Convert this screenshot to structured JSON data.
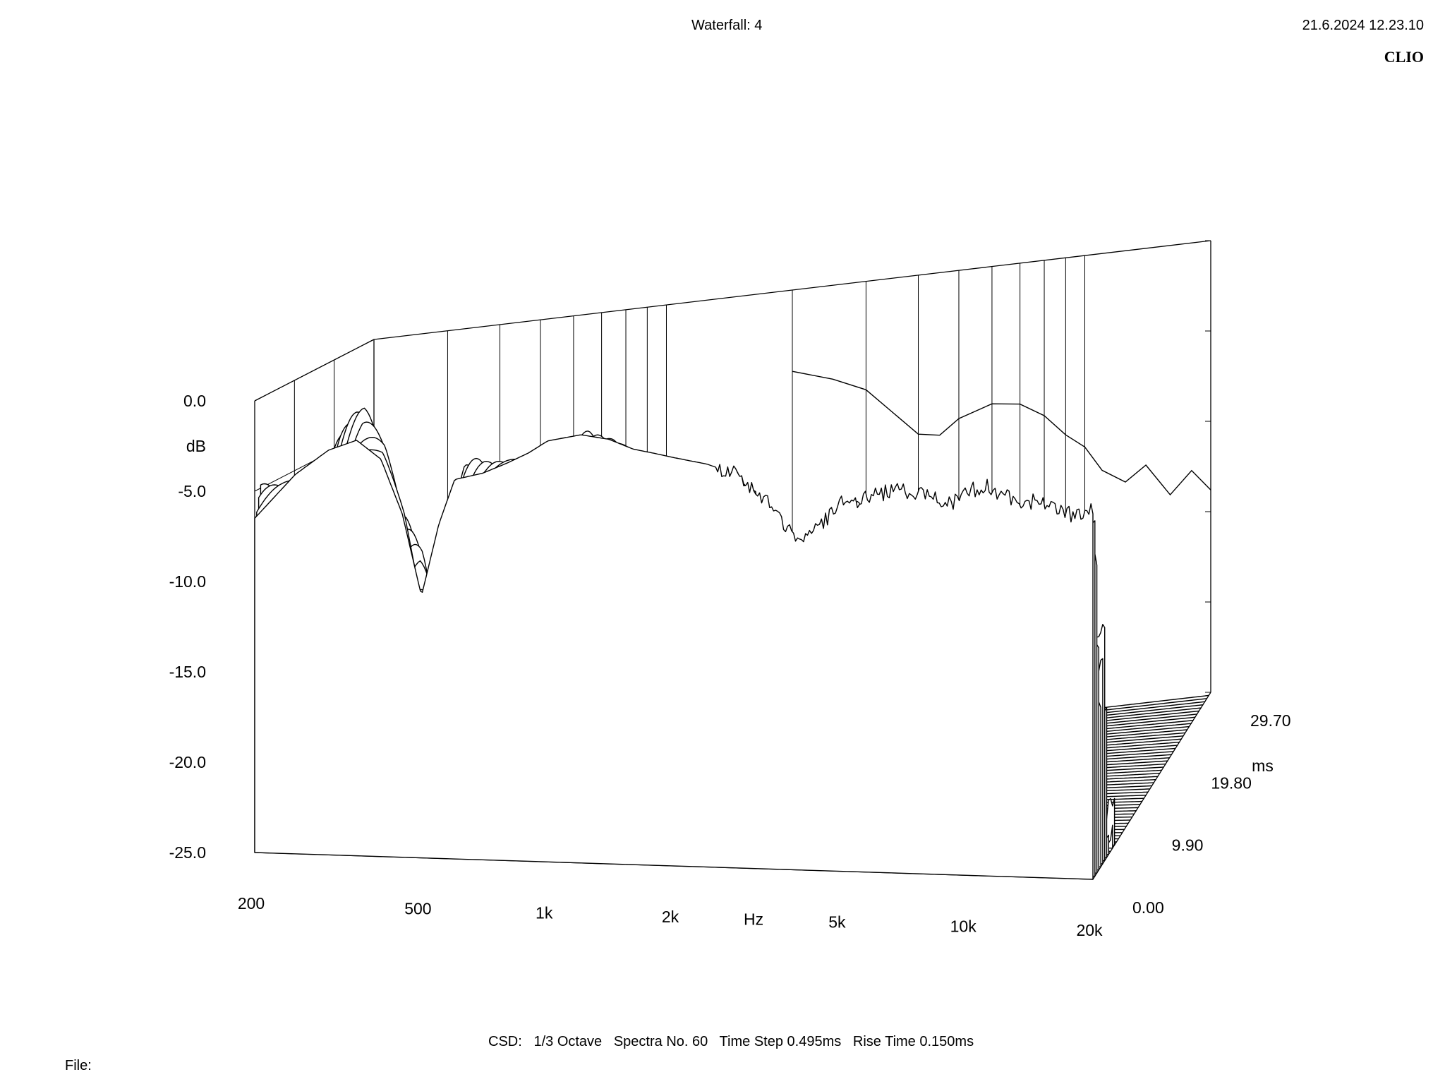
{
  "header": {
    "title": "Waterfall: 4",
    "timestamp": "21.6.2024 12.23.10",
    "brand": "CLIO"
  },
  "footer": {
    "info": "CSD:   1/3 Octave   Spectra No. 60   Time Step 0.495ms   Rise Time 0.150ms",
    "file_label": "File:"
  },
  "chart_data": {
    "type": "waterfall",
    "title": "Waterfall: 4",
    "xlabel": "Hz",
    "ylabel": "dB",
    "zlabel": "ms",
    "x_scale": "log",
    "xlim": [
      200,
      20000
    ],
    "ylim": [
      -25,
      0
    ],
    "zlim": [
      0,
      29.7
    ],
    "x_ticks": [
      {
        "value": 200,
        "label": "200"
      },
      {
        "value": 500,
        "label": "500"
      },
      {
        "value": 1000,
        "label": "1k"
      },
      {
        "value": 2000,
        "label": "2k"
      },
      {
        "value": 5000,
        "label": "5k"
      },
      {
        "value": 10000,
        "label": "10k"
      },
      {
        "value": 20000,
        "label": "20k"
      }
    ],
    "y_ticks": [
      {
        "value": 0,
        "label": "0.0"
      },
      {
        "value": -5,
        "label": "-5.0"
      },
      {
        "value": -10,
        "label": "-10.0"
      },
      {
        "value": -15,
        "label": "-15.0"
      },
      {
        "value": -20,
        "label": "-20.0"
      },
      {
        "value": -25,
        "label": "-25.0"
      }
    ],
    "z_ticks": [
      {
        "value": 0,
        "label": "0.00"
      },
      {
        "value": 9.9,
        "label": "9.90"
      },
      {
        "value": 19.8,
        "label": "19.80"
      },
      {
        "value": 29.7,
        "label": "29.70"
      }
    ],
    "spectra_count": 60,
    "time_step_ms": 0.495,
    "smoothing": "1/3 Octave",
    "rise_time_ms": 0.15,
    "front_spectrum": {
      "freq_hz": [
        200,
        250,
        300,
        350,
        400,
        450,
        500,
        550,
        600,
        700,
        800,
        900,
        1000,
        1200,
        1400,
        1600,
        1800,
        2000,
        2400,
        2800,
        3200,
        3600,
        4000,
        4500,
        5000,
        5600,
        6300,
        7100,
        8000,
        9000,
        10000,
        11000,
        12500,
        14000,
        16000,
        18000,
        20000
      ],
      "level_db": [
        -6.5,
        -4.0,
        -2.6,
        -2.0,
        -3.0,
        -6.0,
        -10.5,
        -6.5,
        -4.0,
        -3.6,
        -3.0,
        -2.4,
        -1.7,
        -1.3,
        -1.5,
        -2.0,
        -2.2,
        -2.4,
        -2.7,
        -3.2,
        -4.2,
        -5.7,
        -6.7,
        -5.8,
        -4.6,
        -4.4,
        -4.0,
        -3.8,
        -4.0,
        -4.6,
        -3.8,
        -3.4,
        -4.0,
        -4.2,
        -4.3,
        -5.0,
        -4.4
      ]
    },
    "reference_curve": {
      "freq_hz": [
        2000,
        2500,
        3000,
        3500,
        4000,
        4500,
        5000,
        6000,
        7000,
        8000,
        9000,
        10000,
        11000,
        12500,
        14000,
        16000,
        18000,
        20000
      ],
      "level_db": [
        -4.5,
        -5.2,
        -6.0,
        -7.5,
        -8.8,
        -9.0,
        -8.2,
        -7.6,
        -7.8,
        -8.6,
        -9.8,
        -10.6,
        -12.0,
        -12.8,
        -12.0,
        -13.8,
        -12.6,
        -13.8
      ]
    }
  }
}
